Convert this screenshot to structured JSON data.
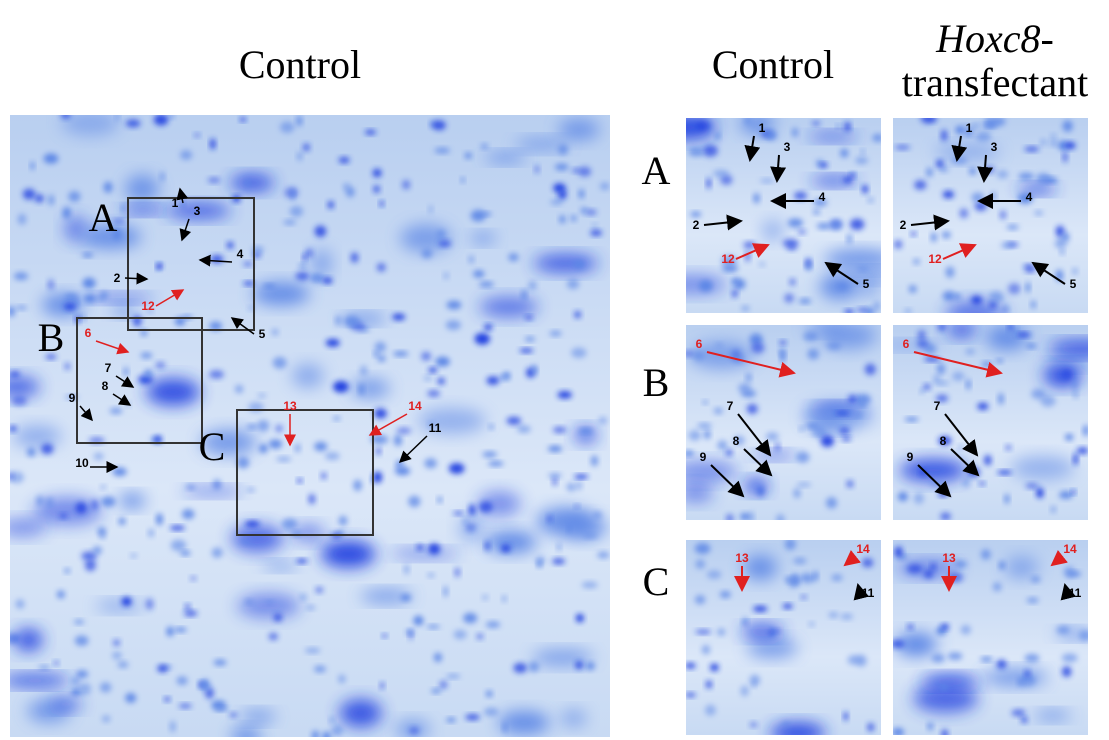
{
  "main_gel": {
    "title": "Control",
    "box_labels": [
      "A",
      "B",
      "C"
    ],
    "spot_labels": [
      "1",
      "2",
      "3",
      "4",
      "5",
      "6",
      "7",
      "8",
      "9",
      "10",
      "11",
      "12",
      "13",
      "14"
    ]
  },
  "zoom": {
    "control_header": "Control",
    "transfectant_gene": "Hoxc8",
    "transfectant_hyphen": "-",
    "transfectant_word": "transfectant",
    "rows": [
      {
        "label": "A",
        "spots": [
          "1",
          "3",
          "4",
          "2",
          "12",
          "5"
        ]
      },
      {
        "label": "B",
        "spots": [
          "6",
          "7",
          "8",
          "9"
        ]
      },
      {
        "label": "C",
        "spots": [
          "13",
          "14",
          "11"
        ]
      }
    ]
  }
}
